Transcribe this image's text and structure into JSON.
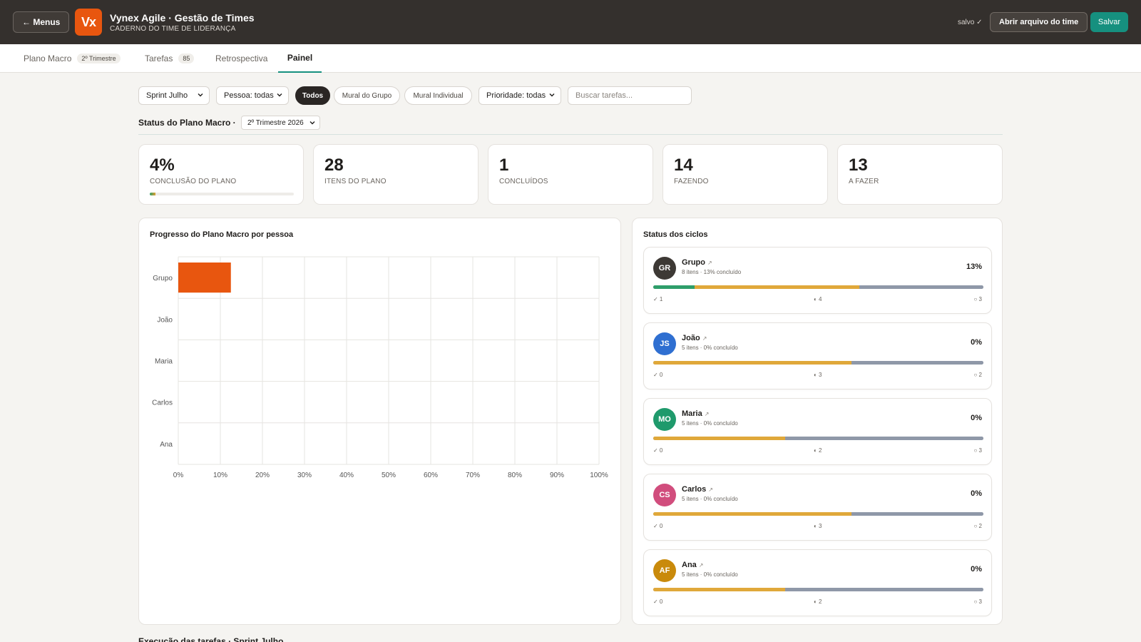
{
  "topbar": {
    "menus_label": "← Menus",
    "logo_text": "Vx",
    "title": "Vynex Agile · Gestão de Times",
    "subtitle": "CADERNO DO TIME DE LIDERANÇA",
    "saved_label": "salvo ✓",
    "open_label": "Abrir arquivo do time",
    "save_label": "Salvar"
  },
  "tabs": [
    {
      "label": "Plano Macro",
      "count": "2º Trimestre"
    },
    {
      "label": "Tarefas",
      "count": "85"
    },
    {
      "label": "Retrospectiva",
      "count": ""
    },
    {
      "label": "Painel",
      "count": ""
    }
  ],
  "filters": {
    "sprint": "Sprint Julho",
    "person": "Pessoa: todas",
    "pill_all": "Todos",
    "pill_group": "Mural do Grupo",
    "pill_individual": "Mural Individual",
    "priority": "Prioridade: todas",
    "search_placeholder": "Buscar tarefas..."
  },
  "plan_status": {
    "label": "Status do Plano Macro ·",
    "quarter": "2º Trimestre 2026"
  },
  "stats": [
    {
      "value": "4%",
      "label": "CONCLUSÃO DO PLANO",
      "progress": 4
    },
    {
      "value": "28",
      "label": "ITENS DO PLANO"
    },
    {
      "value": "1",
      "label": "CONCLUÍDOS"
    },
    {
      "value": "14",
      "label": "FAZENDO"
    },
    {
      "value": "13",
      "label": "A FAZER"
    }
  ],
  "progress_panel": {
    "title": "Progresso do Plano Macro por pessoa"
  },
  "chart_data": {
    "type": "bar",
    "orientation": "horizontal",
    "categories": [
      "Grupo",
      "João",
      "Maria",
      "Carlos",
      "Ana"
    ],
    "values": [
      12.5,
      0,
      0,
      0,
      0
    ],
    "xlim": [
      0,
      100
    ],
    "xticks": [
      "0%",
      "10%",
      "20%",
      "30%",
      "40%",
      "50%",
      "60%",
      "70%",
      "80%",
      "90%",
      "100%"
    ],
    "grid": true,
    "bar_color": "#e8560f"
  },
  "cycles_panel": {
    "title": "Status dos ciclos",
    "items": [
      {
        "initials": "GR",
        "name": "Grupo",
        "meta": "8 itens · 13% concluído",
        "pct": "13%",
        "color": "#3d3935",
        "done": 1,
        "doing": 4,
        "todo": 3,
        "done_label": "✓ 1",
        "doing_label": "◐ 4",
        "todo_label": "○ 3"
      },
      {
        "initials": "JS",
        "name": "João",
        "meta": "5 itens · 0% concluído",
        "pct": "0%",
        "color": "#2f6fd1",
        "done": 0,
        "doing": 3,
        "todo": 2,
        "done_label": "✓ 0",
        "doing_label": "◐ 3",
        "todo_label": "○ 2"
      },
      {
        "initials": "MO",
        "name": "Maria",
        "meta": "5 itens · 0% concluído",
        "pct": "0%",
        "color": "#1f9a6c",
        "done": 0,
        "doing": 2,
        "todo": 3,
        "done_label": "✓ 0",
        "doing_label": "◐ 2",
        "todo_label": "○ 3"
      },
      {
        "initials": "CS",
        "name": "Carlos",
        "meta": "5 itens · 0% concluído",
        "pct": "0%",
        "color": "#d14d7d",
        "done": 0,
        "doing": 3,
        "todo": 2,
        "done_label": "✓ 0",
        "doing_label": "◐ 3",
        "todo_label": "○ 2"
      },
      {
        "initials": "AF",
        "name": "Ana",
        "meta": "5 itens · 0% concluído",
        "pct": "0%",
        "color": "#c98a0b",
        "done": 0,
        "doing": 2,
        "todo": 3,
        "done_label": "✓ 0",
        "doing_label": "◐ 2",
        "todo_label": "○ 3"
      }
    ]
  },
  "bottom": {
    "title": "Execução das tarefas · Sprint Julho"
  }
}
